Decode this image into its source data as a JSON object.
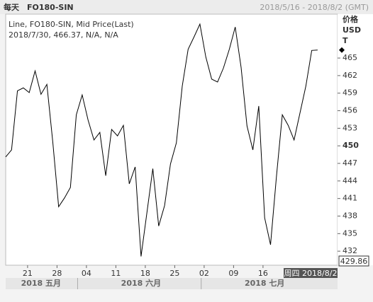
{
  "chart_data": {
    "type": "line",
    "period": "每天",
    "title": "FO180-SIN",
    "date_range": "2018/5/16 - 2018/8/2 (GMT)",
    "legend_lines": [
      "Line, FO180-SIN, Mid Price(Last)",
      "2018/7/30, 466.37, N/A, N/A"
    ],
    "y_label": [
      "价格",
      "USD",
      "T"
    ],
    "color": "#000000",
    "x": [
      "2018-05-16",
      "2018-05-17",
      "2018-05-18",
      "2018-05-21",
      "2018-05-22",
      "2018-05-23",
      "2018-05-24",
      "2018-05-25",
      "2018-05-28",
      "2018-05-29",
      "2018-05-30",
      "2018-05-31",
      "2018-06-01",
      "2018-06-04",
      "2018-06-05",
      "2018-06-06",
      "2018-06-07",
      "2018-06-08",
      "2018-06-11",
      "2018-06-12",
      "2018-06-13",
      "2018-06-14",
      "2018-06-15",
      "2018-06-18",
      "2018-06-19",
      "2018-06-20",
      "2018-06-21",
      "2018-06-22",
      "2018-06-25",
      "2018-06-26",
      "2018-06-27",
      "2018-06-28",
      "2018-06-29",
      "2018-07-02",
      "2018-07-03",
      "2018-07-04",
      "2018-07-05",
      "2018-07-06",
      "2018-07-09",
      "2018-07-10",
      "2018-07-11",
      "2018-07-12",
      "2018-07-13",
      "2018-07-16",
      "2018-07-17",
      "2018-07-18",
      "2018-07-19",
      "2018-07-20",
      "2018-07-23",
      "2018-07-24",
      "2018-07-25",
      "2018-07-26",
      "2018-07-27",
      "2018-07-30"
    ],
    "values": [
      448.1,
      449.3,
      459.4,
      459.9,
      459.1,
      462.8,
      458.8,
      460.5,
      450.7,
      439.6,
      441.1,
      442.9,
      455.3,
      458.7,
      454.4,
      451.0,
      452.3,
      444.9,
      452.8,
      451.7,
      453.5,
      443.5,
      446.4,
      431.1,
      438.6,
      446.1,
      436.3,
      439.8,
      446.9,
      450.5,
      460.2,
      466.5,
      468.6,
      470.8,
      465.2,
      461.4,
      460.9,
      463.3,
      466.5,
      470.3,
      463.4,
      453.4,
      449.3,
      456.8,
      437.7,
      433.1,
      444.7,
      455.3,
      453.5,
      451.0,
      455.6,
      460.2,
      466.3,
      466.37
    ],
    "ylim": [
      429.6,
      472.5
    ],
    "yticks": [
      432,
      435,
      438,
      441,
      444,
      447,
      450,
      453,
      456,
      459,
      462,
      465
    ],
    "xticks": [
      {
        "value": "2018-05-21",
        "label": "21"
      },
      {
        "value": "2018-05-28",
        "label": "28"
      },
      {
        "value": "2018-06-04",
        "label": "04"
      },
      {
        "value": "2018-06-11",
        "label": "11"
      },
      {
        "value": "2018-06-18",
        "label": "18"
      },
      {
        "value": "2018-06-25",
        "label": "25"
      },
      {
        "value": "2018-07-02",
        "label": "02"
      },
      {
        "value": "2018-07-09",
        "label": "09"
      },
      {
        "value": "2018-07-16",
        "label": "16"
      }
    ],
    "month_labels": [
      {
        "value": "2018-05-24",
        "label": "2018 五月"
      },
      {
        "value": "2018-06-18",
        "label": "2018 六月"
      },
      {
        "value": "2018-07-17",
        "label": "2018 七月"
      }
    ],
    "crosshair_label": "周四 2018/8/2",
    "price_label": "429.86"
  }
}
